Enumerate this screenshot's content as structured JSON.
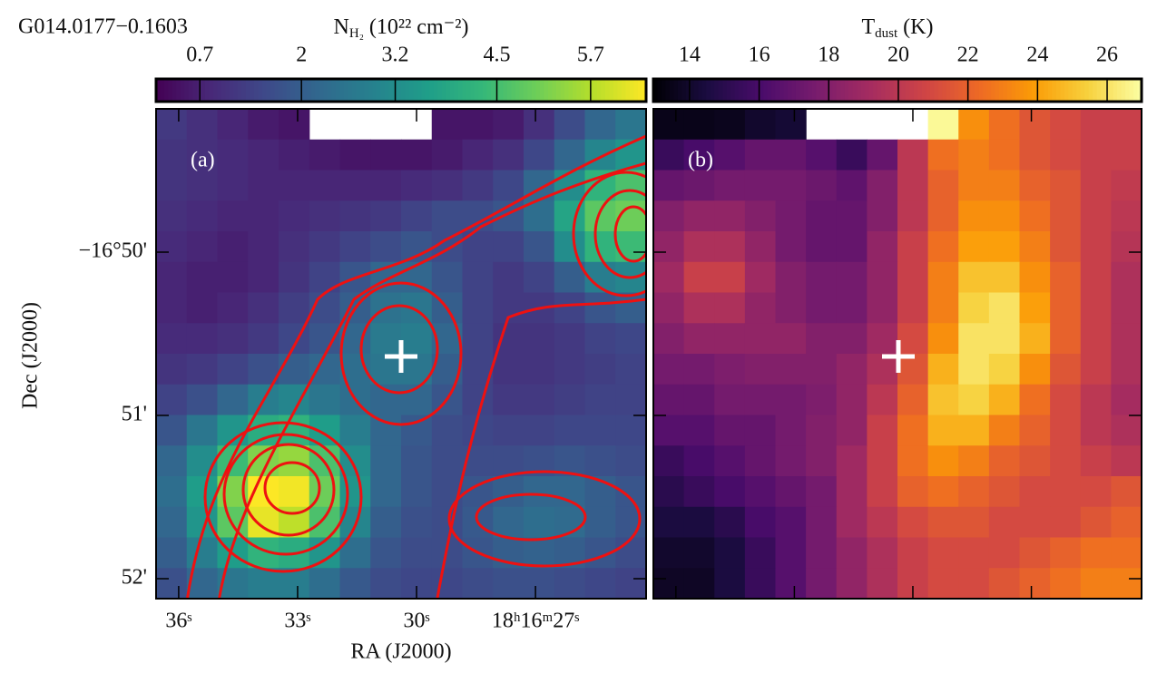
{
  "chart_data": [
    {
      "type": "heatmap",
      "title": "G014.0177−0.1603",
      "panel_label": "(a)",
      "colorbar_label": {
        "symbol": "N",
        "subscript": "H₂",
        "unit": " (10²² cm⁻²)"
      },
      "colormap": "viridis",
      "clim": [
        0.14,
        6.41
      ],
      "cticks": [
        0.7,
        2.0,
        3.2,
        4.5,
        5.7
      ],
      "xlabel": "RA (J2000)",
      "ylabel": "Dec (J2000)",
      "xlim": [
        36.57,
        24.21
      ],
      "xticks": [
        {
          "value": 36,
          "label": "36ˢ"
        },
        {
          "value": 33,
          "label": "33ˢ"
        },
        {
          "value": 30,
          "label": "30ˢ"
        },
        {
          "value": 27,
          "label": "18ʰ16ᵐ27ˢ"
        }
      ],
      "ylim": [
        -16.868704,
        -16.818704
      ],
      "yticks": [
        {
          "value": -16.833333,
          "label": "−16°50'"
        },
        {
          "value": -16.85,
          "label": "51'"
        },
        {
          "value": -16.866667,
          "label": "52'"
        }
      ],
      "z": [
        [
          1.2,
          1.0,
          0.8,
          0.6,
          0.5,
          null,
          null,
          null,
          null,
          0.5,
          0.5,
          0.6,
          1.0,
          1.6,
          2.2,
          2.6
        ],
        [
          1.1,
          1.0,
          0.9,
          0.8,
          0.7,
          0.6,
          0.5,
          0.5,
          0.5,
          0.6,
          0.8,
          1.0,
          1.5,
          2.2,
          3.0,
          3.4
        ],
        [
          1.1,
          1.0,
          0.9,
          0.8,
          0.8,
          0.8,
          0.8,
          0.8,
          0.9,
          1.0,
          1.2,
          1.5,
          2.2,
          3.2,
          4.2,
          4.6
        ],
        [
          1.0,
          0.9,
          0.8,
          0.8,
          0.9,
          1.0,
          1.1,
          1.2,
          1.4,
          1.6,
          1.6,
          1.8,
          2.4,
          3.8,
          4.8,
          5.0
        ],
        [
          0.9,
          0.8,
          0.7,
          0.8,
          1.0,
          1.2,
          1.4,
          1.6,
          1.8,
          1.6,
          1.4,
          1.4,
          1.8,
          3.2,
          4.2,
          4.4
        ],
        [
          0.8,
          0.7,
          0.7,
          0.8,
          1.1,
          1.4,
          1.8,
          2.2,
          2.2,
          1.8,
          1.4,
          1.2,
          1.4,
          2.0,
          2.8,
          3.0
        ],
        [
          0.8,
          0.7,
          0.8,
          1.0,
          1.3,
          1.6,
          2.0,
          2.5,
          2.6,
          2.0,
          1.4,
          1.2,
          1.2,
          1.4,
          1.8,
          2.0
        ],
        [
          0.9,
          0.9,
          1.0,
          1.2,
          1.5,
          1.8,
          2.2,
          2.7,
          2.8,
          2.2,
          1.4,
          1.1,
          1.1,
          1.2,
          1.4,
          1.5
        ],
        [
          1.1,
          1.2,
          1.4,
          1.7,
          2.0,
          2.2,
          2.4,
          2.6,
          2.6,
          2.0,
          1.4,
          1.1,
          1.1,
          1.2,
          1.3,
          1.4
        ],
        [
          1.4,
          1.7,
          2.2,
          2.8,
          3.0,
          2.6,
          2.4,
          2.2,
          2.2,
          1.8,
          1.4,
          1.2,
          1.2,
          1.3,
          1.4,
          1.4
        ],
        [
          1.8,
          2.6,
          3.4,
          4.0,
          4.2,
          3.6,
          2.8,
          2.2,
          1.9,
          1.6,
          1.5,
          1.4,
          1.4,
          1.5,
          1.5,
          1.5
        ],
        [
          2.2,
          3.2,
          4.4,
          5.2,
          5.4,
          4.6,
          3.2,
          2.2,
          1.8,
          1.6,
          1.6,
          1.6,
          1.7,
          1.8,
          1.7,
          1.6
        ],
        [
          2.4,
          3.6,
          5.2,
          6.4,
          6.3,
          5.0,
          3.4,
          2.2,
          1.8,
          1.6,
          1.8,
          2.0,
          2.2,
          2.2,
          2.0,
          1.8
        ],
        [
          2.2,
          3.4,
          4.8,
          6.2,
          5.8,
          4.6,
          3.0,
          2.0,
          1.7,
          1.6,
          1.9,
          2.2,
          2.4,
          2.3,
          2.0,
          1.8
        ],
        [
          2.0,
          2.8,
          3.6,
          4.2,
          4.0,
          3.4,
          2.4,
          1.8,
          1.6,
          1.6,
          1.8,
          2.0,
          2.1,
          2.0,
          1.8,
          1.6
        ],
        [
          1.7,
          2.2,
          2.6,
          2.8,
          2.8,
          2.4,
          1.9,
          1.6,
          1.5,
          1.5,
          1.6,
          1.7,
          1.7,
          1.6,
          1.5,
          1.4
        ]
      ]
    },
    {
      "type": "heatmap",
      "panel_label": "(b)",
      "colorbar_label": {
        "symbol": "T",
        "subscript": "dust",
        "unit": " (K)"
      },
      "colormap": "inferno",
      "clim": [
        12.96,
        26.99
      ],
      "cticks": [
        14,
        16,
        18,
        20,
        22,
        24,
        26
      ],
      "z": [
        [
          13.5,
          13.5,
          13.6,
          14,
          14.2,
          null,
          null,
          null,
          null,
          26.8,
          23.5,
          22.5,
          21.5,
          21,
          20.5,
          20.5
        ],
        [
          15.5,
          16,
          16.5,
          17,
          17,
          16.5,
          15.5,
          17,
          20,
          22.5,
          23,
          22.5,
          21.5,
          21,
          20.5,
          20.5
        ],
        [
          17,
          17.2,
          17.5,
          17.5,
          17.5,
          17.2,
          16.8,
          18,
          20,
          22,
          23,
          23,
          22,
          21.5,
          20.5,
          20.2
        ],
        [
          18,
          18.5,
          18.5,
          18,
          17.5,
          17,
          17,
          18,
          20,
          22,
          23.5,
          23.5,
          22.5,
          21.5,
          20.5,
          20
        ],
        [
          18.5,
          19.5,
          19.5,
          18.5,
          17.5,
          17,
          17,
          18.5,
          20.5,
          22.5,
          24,
          24,
          23,
          21.5,
          20.5,
          19.8
        ],
        [
          19,
          20.5,
          20.5,
          19,
          18,
          17.5,
          17.5,
          18.5,
          20.5,
          23,
          25,
          25,
          23.5,
          22,
          20.5,
          19.5
        ],
        [
          18.5,
          19.5,
          19.5,
          18.5,
          18,
          17.5,
          17.5,
          18.5,
          20.5,
          23,
          25.5,
          26,
          24,
          22,
          20.5,
          19.5
        ],
        [
          18,
          18.5,
          18.5,
          18.5,
          18.5,
          18,
          18,
          19,
          21,
          23.5,
          26,
          26,
          24.5,
          22,
          20.5,
          19.5
        ],
        [
          17.5,
          17.5,
          17.8,
          18,
          18,
          18,
          18.5,
          19.5,
          21.5,
          24.5,
          26,
          25.5,
          23.5,
          21.5,
          20.5,
          19.5
        ],
        [
          17,
          17,
          17.5,
          17.5,
          17.5,
          17.8,
          18.5,
          20,
          22,
          25,
          25.5,
          24.5,
          22.5,
          21,
          20,
          19.2
        ],
        [
          16.5,
          16.5,
          17,
          17,
          17.5,
          18,
          18.5,
          20.5,
          22.5,
          24.5,
          24.5,
          23,
          22,
          21,
          20,
          19.5
        ],
        [
          15.5,
          16,
          16.5,
          17,
          17.5,
          18,
          19,
          20.5,
          22.5,
          23.5,
          23,
          22,
          21.5,
          21,
          20.5,
          20
        ],
        [
          15,
          15.5,
          16,
          16.5,
          17,
          17.5,
          19,
          20.5,
          22,
          22.5,
          22,
          21.5,
          21,
          21,
          21,
          21.5
        ],
        [
          14.5,
          14.5,
          15,
          16,
          16.5,
          17.5,
          19,
          20,
          21,
          21.5,
          21.5,
          21,
          21,
          21,
          21.5,
          22
        ],
        [
          14,
          14,
          14.5,
          15.5,
          16.5,
          17.5,
          18.5,
          19.5,
          20.5,
          21,
          21,
          21,
          21.5,
          22,
          22.5,
          22.5
        ],
        [
          13.8,
          13.8,
          14.5,
          15.5,
          16.5,
          17.5,
          18.5,
          19.5,
          20.5,
          21,
          21,
          21.5,
          22,
          22.5,
          23,
          23
        ]
      ]
    }
  ]
}
